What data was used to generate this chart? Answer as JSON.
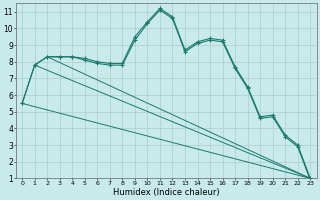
{
  "xlabel": "Humidex (Indice chaleur)",
  "background_color": "#c8eaea",
  "grid_color": "#b0cccc",
  "line_color": "#1a7a6e",
  "xlim": [
    -0.5,
    23.5
  ],
  "ylim": [
    1,
    11.5
  ],
  "xticks": [
    0,
    1,
    2,
    3,
    4,
    5,
    6,
    7,
    8,
    9,
    10,
    11,
    12,
    13,
    14,
    15,
    16,
    17,
    18,
    19,
    20,
    21,
    22,
    23
  ],
  "yticks": [
    1,
    2,
    3,
    4,
    5,
    6,
    7,
    8,
    9,
    10,
    11
  ],
  "line1_x": [
    0,
    1,
    2,
    3,
    4,
    5,
    6,
    7,
    8,
    9,
    10,
    11,
    12,
    13,
    14,
    15,
    16,
    17,
    18,
    19,
    20,
    21,
    22,
    23
  ],
  "line1_y": [
    5.5,
    7.8,
    8.3,
    8.3,
    8.3,
    8.2,
    8.0,
    7.9,
    7.9,
    9.5,
    10.4,
    11.2,
    10.7,
    8.7,
    9.2,
    9.4,
    9.3,
    7.7,
    6.5,
    4.7,
    4.8,
    3.6,
    3.0,
    1.0
  ],
  "line2_x": [
    0,
    23
  ],
  "line2_y": [
    5.5,
    1.0
  ],
  "line3_x": [
    1,
    23
  ],
  "line3_y": [
    7.8,
    1.0
  ],
  "line4_x": [
    2,
    23
  ],
  "line4_y": [
    8.3,
    1.0
  ],
  "line5_x": [
    0,
    1,
    2,
    3,
    4,
    5,
    6,
    7,
    8,
    9,
    10,
    11,
    12,
    13,
    14,
    15,
    16,
    17,
    18,
    19,
    20,
    21,
    22,
    23
  ],
  "line5_y": [
    5.5,
    7.8,
    8.3,
    8.3,
    8.3,
    8.1,
    7.9,
    7.8,
    7.8,
    9.3,
    10.3,
    11.1,
    10.6,
    8.6,
    9.1,
    9.3,
    9.2,
    7.6,
    6.4,
    4.6,
    4.7,
    3.5,
    2.9,
    0.9
  ]
}
